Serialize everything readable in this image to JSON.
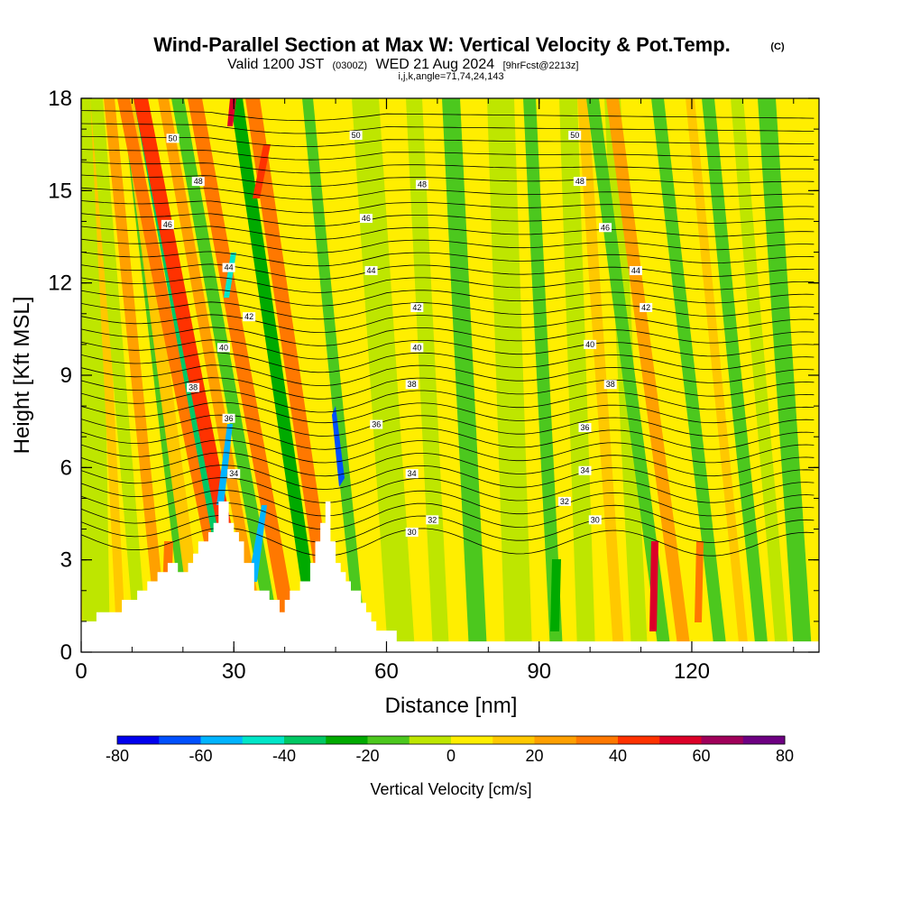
{
  "header": {
    "title": "Wind-Parallel Section at Max W: Vertical Velocity & Pot.Temp.",
    "copyright": "(C)",
    "valid_prefix": "Valid 1200 JST",
    "valid_utc": "(0300Z)",
    "valid_date": "WED 21 Aug 2024",
    "forecast_info": "[9hrFcst@2213z]",
    "params": "i,j,k,angle=71,74,24,143"
  },
  "colors": {
    "terrain": "#ffffff",
    "contour": "#000000",
    "colorbar": [
      "#0000ee",
      "#0050ff",
      "#00b4ff",
      "#00e6c8",
      "#00c864",
      "#00aa00",
      "#4cc81e",
      "#bee600",
      "#ffee00",
      "#ffc800",
      "#ffa000",
      "#ff7800",
      "#ff3200",
      "#dc0028",
      "#a0005a",
      "#6e0082"
    ]
  },
  "chart_data": {
    "type": "heatmap",
    "xlabel": "Distance [nm]",
    "ylabel": "Height [Kft MSL]",
    "xlim": [
      0,
      145
    ],
    "ylim": [
      0,
      18
    ],
    "xticks": [
      0,
      30,
      60,
      90,
      120
    ],
    "yticks": [
      0,
      3,
      6,
      9,
      12,
      15,
      18
    ],
    "colorbar": {
      "title": "Vertical Velocity [cm/s]",
      "min": -80,
      "max": 80,
      "step": 10,
      "tick_labels": [
        -80,
        -60,
        -40,
        -20,
        0,
        20,
        40,
        60,
        80
      ]
    },
    "terrain_profile": [
      [
        0,
        1.0
      ],
      [
        3,
        1.0
      ],
      [
        3,
        1.3
      ],
      [
        8,
        1.3
      ],
      [
        8,
        1.7
      ],
      [
        11,
        1.7
      ],
      [
        11,
        2.0
      ],
      [
        13,
        2.0
      ],
      [
        13,
        2.3
      ],
      [
        15,
        2.3
      ],
      [
        15,
        2.6
      ],
      [
        17,
        2.6
      ],
      [
        17,
        2.9
      ],
      [
        19,
        2.9
      ],
      [
        19,
        2.6
      ],
      [
        21,
        2.6
      ],
      [
        21,
        2.9
      ],
      [
        22,
        2.9
      ],
      [
        22,
        3.2
      ],
      [
        23,
        3.2
      ],
      [
        23,
        3.6
      ],
      [
        25,
        3.6
      ],
      [
        25,
        3.9
      ],
      [
        26,
        3.9
      ],
      [
        26,
        4.2
      ],
      [
        27,
        4.2
      ],
      [
        27,
        4.9
      ],
      [
        29,
        4.9
      ],
      [
        29,
        4.2
      ],
      [
        30,
        4.2
      ],
      [
        30,
        3.9
      ],
      [
        31,
        3.9
      ],
      [
        31,
        3.6
      ],
      [
        32,
        3.6
      ],
      [
        32,
        2.9
      ],
      [
        34,
        2.9
      ],
      [
        34,
        2.0
      ],
      [
        37,
        2.0
      ],
      [
        37,
        1.7
      ],
      [
        39,
        1.7
      ],
      [
        39,
        1.3
      ],
      [
        40,
        1.3
      ],
      [
        40,
        1.7
      ],
      [
        41,
        1.7
      ],
      [
        41,
        2.0
      ],
      [
        43,
        2.0
      ],
      [
        43,
        2.3
      ],
      [
        45,
        2.3
      ],
      [
        45,
        2.9
      ],
      [
        46,
        2.9
      ],
      [
        46,
        3.6
      ],
      [
        47,
        3.6
      ],
      [
        47,
        4.2
      ],
      [
        48,
        4.2
      ],
      [
        48,
        4.9
      ],
      [
        49,
        4.9
      ],
      [
        49,
        3.6
      ],
      [
        50,
        3.6
      ],
      [
        50,
        2.9
      ],
      [
        51,
        2.9
      ],
      [
        51,
        2.6
      ],
      [
        52,
        2.6
      ],
      [
        52,
        2.3
      ],
      [
        53,
        2.3
      ],
      [
        53,
        2.0
      ],
      [
        55,
        2.0
      ],
      [
        55,
        1.6
      ],
      [
        56,
        1.6
      ],
      [
        56,
        1.3
      ],
      [
        57,
        1.3
      ],
      [
        57,
        1.0
      ],
      [
        58,
        1.0
      ],
      [
        58,
        0.7
      ],
      [
        62,
        0.7
      ],
      [
        62,
        0.35
      ],
      [
        145,
        0.35
      ]
    ],
    "contour_labels": [
      {
        "text": "50",
        "x": 18,
        "y": 16.7
      },
      {
        "text": "50",
        "x": 54,
        "y": 16.8
      },
      {
        "text": "50",
        "x": 97,
        "y": 16.8
      },
      {
        "text": "48",
        "x": 23,
        "y": 15.3
      },
      {
        "text": "48",
        "x": 67,
        "y": 15.2
      },
      {
        "text": "48",
        "x": 98,
        "y": 15.3
      },
      {
        "text": "46",
        "x": 17,
        "y": 13.9
      },
      {
        "text": "46",
        "x": 56,
        "y": 14.1
      },
      {
        "text": "46",
        "x": 103,
        "y": 13.8
      },
      {
        "text": "44",
        "x": 29,
        "y": 12.5
      },
      {
        "text": "44",
        "x": 57,
        "y": 12.4
      },
      {
        "text": "44",
        "x": 109,
        "y": 12.4
      },
      {
        "text": "42",
        "x": 33,
        "y": 10.9
      },
      {
        "text": "42",
        "x": 66,
        "y": 11.2
      },
      {
        "text": "42",
        "x": 111,
        "y": 11.2
      },
      {
        "text": "40",
        "x": 28,
        "y": 9.9
      },
      {
        "text": "40",
        "x": 66,
        "y": 9.9
      },
      {
        "text": "40",
        "x": 100,
        "y": 10.0
      },
      {
        "text": "38",
        "x": 22,
        "y": 8.6
      },
      {
        "text": "38",
        "x": 65,
        "y": 8.7
      },
      {
        "text": "38",
        "x": 104,
        "y": 8.7
      },
      {
        "text": "36",
        "x": 29,
        "y": 7.6
      },
      {
        "text": "36",
        "x": 58,
        "y": 7.4
      },
      {
        "text": "36",
        "x": 99,
        "y": 7.3
      },
      {
        "text": "34",
        "x": 30,
        "y": 5.8
      },
      {
        "text": "34",
        "x": 65,
        "y": 5.8
      },
      {
        "text": "34",
        "x": 99,
        "y": 5.9
      },
      {
        "text": "32",
        "x": 69,
        "y": 4.3
      },
      {
        "text": "32",
        "x": 95,
        "y": 4.9
      },
      {
        "text": "30",
        "x": 65,
        "y": 3.9
      },
      {
        "text": "30",
        "x": 101,
        "y": 4.3
      }
    ]
  }
}
